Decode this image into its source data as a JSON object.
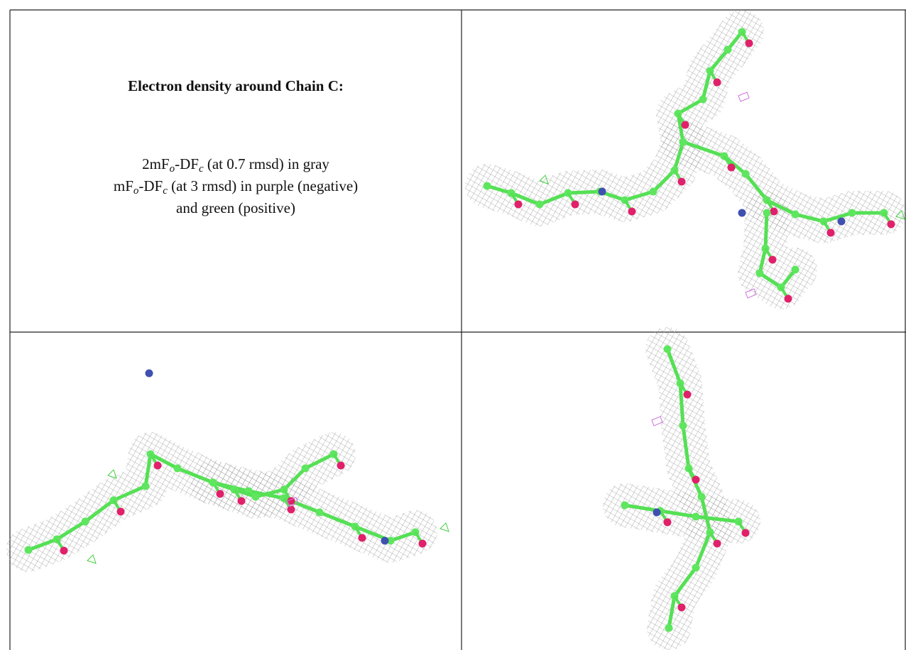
{
  "caption": {
    "title": "Electron density around Chain C:",
    "lines": [
      [
        "2mF",
        "o",
        "-DF",
        "c",
        " (at 0.7 rmsd) in gray"
      ],
      [
        "mF",
        "o",
        "-DF",
        "c",
        " (at 3 rmsd) in purple (negative)"
      ],
      [
        "and green (positive)"
      ]
    ]
  }
}
